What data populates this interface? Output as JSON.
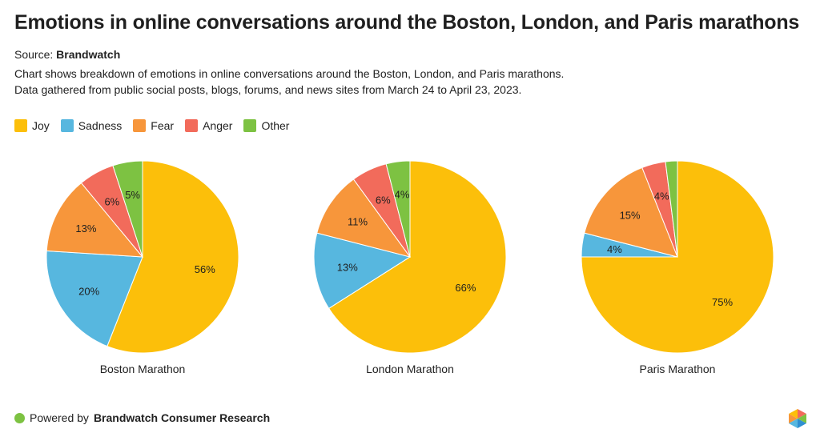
{
  "header": {
    "title": "Emotions in online conversations around the Boston, London, and Paris marathons",
    "source_label": "Source:",
    "source_name": "Brandwatch",
    "description_line1": "Chart shows breakdown of emotions in online conversations around the Boston, London, and Paris marathons.",
    "description_line2": "Data gathered from public social posts, blogs, forums, and news sites from March 24 to April 23, 2023."
  },
  "legend": [
    {
      "label": "Joy",
      "color": "#fcbf0a"
    },
    {
      "label": "Sadness",
      "color": "#57b7df"
    },
    {
      "label": "Fear",
      "color": "#f7963b"
    },
    {
      "label": "Anger",
      "color": "#f26b5b"
    },
    {
      "label": "Other",
      "color": "#7dc242"
    }
  ],
  "chart_data": [
    {
      "type": "pie",
      "xlabel": "Boston Marathon",
      "categories": [
        "Joy",
        "Sadness",
        "Fear",
        "Anger",
        "Other"
      ],
      "values": [
        56,
        20,
        13,
        6,
        5
      ],
      "labels": [
        "56%",
        "20%",
        "13%",
        "6%",
        "5%"
      ]
    },
    {
      "type": "pie",
      "xlabel": "London Marathon",
      "categories": [
        "Joy",
        "Sadness",
        "Fear",
        "Anger",
        "Other"
      ],
      "values": [
        66,
        13,
        11,
        6,
        4
      ],
      "labels": [
        "66%",
        "13%",
        "11%",
        "6%",
        "4%"
      ]
    },
    {
      "type": "pie",
      "xlabel": "Paris Marathon",
      "categories": [
        "Joy",
        "Sadness",
        "Fear",
        "Anger",
        "Other"
      ],
      "values": [
        75,
        4,
        15,
        4,
        2
      ],
      "labels": [
        "75%",
        "4%",
        "15%",
        "4%",
        ""
      ]
    }
  ],
  "footer": {
    "prefix": "Powered by",
    "brand": "Brandwatch Consumer Research"
  },
  "logo_icon": "brandwatch-hexagon-icon"
}
